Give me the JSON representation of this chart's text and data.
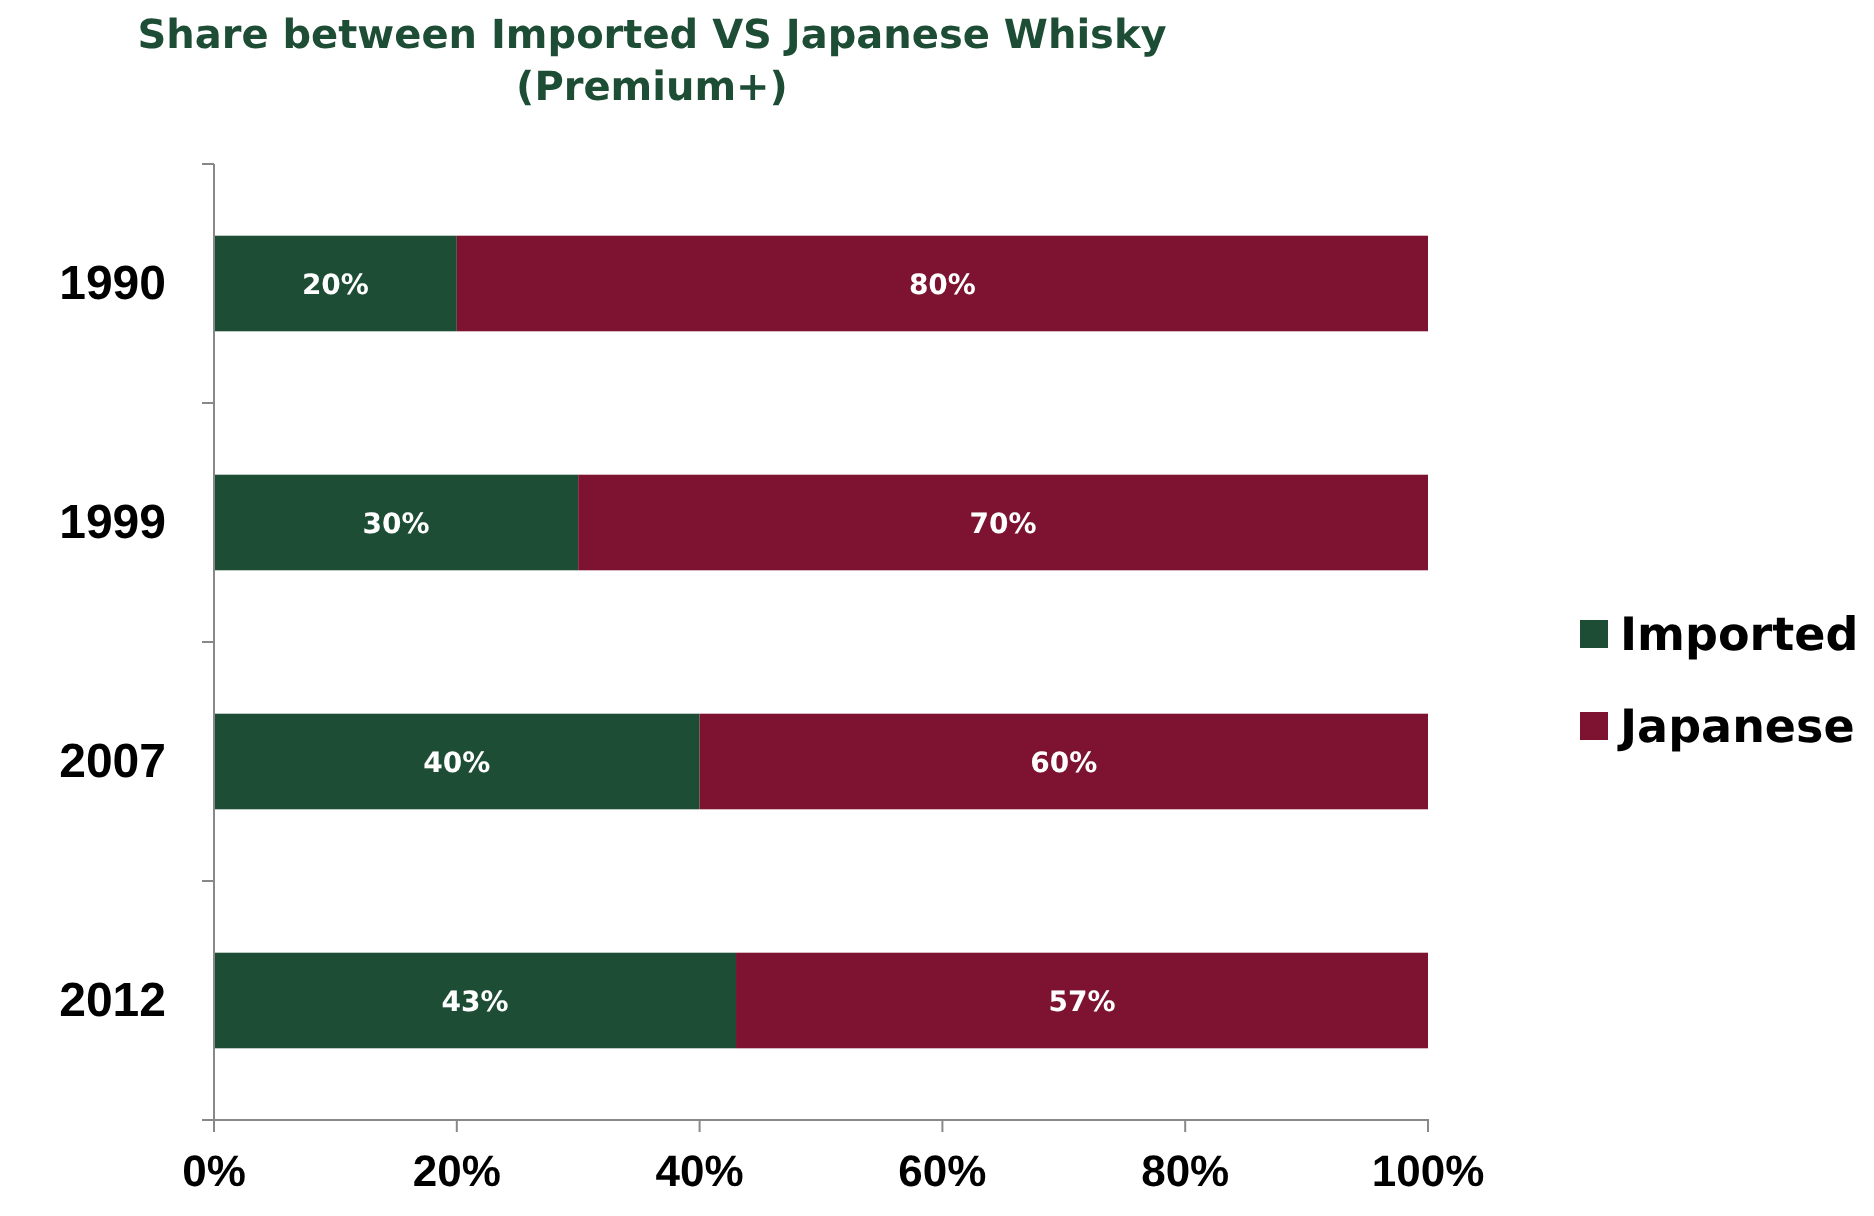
{
  "chart_data": {
    "type": "bar",
    "orientation": "horizontal",
    "stacked": true,
    "title": "Share between Imported VS Japanese Whisky\n(Premium+)",
    "categories": [
      "1990",
      "1999",
      "2007",
      "2012"
    ],
    "series": [
      {
        "name": "Imported",
        "color": "#1e4d36",
        "values": [
          20,
          30,
          40,
          43
        ],
        "value_labels": [
          "20%",
          "30%",
          "40%",
          "43%"
        ]
      },
      {
        "name": "Japanese",
        "color": "#7d1330",
        "values": [
          80,
          70,
          60,
          57
        ],
        "value_labels": [
          "80%",
          "70%",
          "60%",
          "57%"
        ]
      }
    ],
    "xlim": [
      0,
      100
    ],
    "xticks": [
      {
        "value": 0,
        "label": "0%"
      },
      {
        "value": 20,
        "label": "20%"
      },
      {
        "value": 40,
        "label": "40%"
      },
      {
        "value": 60,
        "label": "60%"
      },
      {
        "value": 80,
        "label": "80%"
      },
      {
        "value": 100,
        "label": "100%"
      }
    ],
    "grid": false,
    "legend": "right"
  }
}
